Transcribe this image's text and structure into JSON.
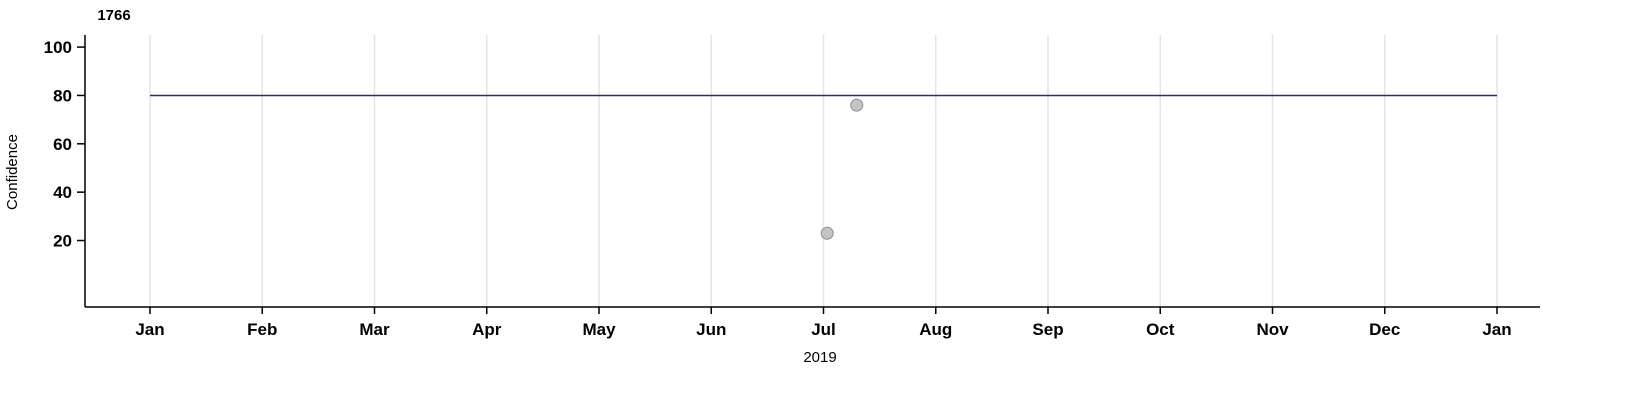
{
  "title": "1766",
  "ylabel": "Confidence",
  "xlabel": "2019",
  "chart_data": {
    "type": "scatter",
    "title": "1766",
    "xlabel": "2019",
    "ylabel": "Confidence",
    "x_tick_labels": [
      "Jan",
      "Feb",
      "Mar",
      "Apr",
      "May",
      "Jun",
      "Jul",
      "Aug",
      "Sep",
      "Oct",
      "Nov",
      "Dec",
      "Jan"
    ],
    "y_ticks": [
      20,
      40,
      60,
      80,
      100
    ],
    "ylim": [
      -7.5,
      105
    ],
    "grid": true,
    "grid_color": "#e4e4e4",
    "axis_color": "#000000",
    "reference_line": {
      "value": 80,
      "color": "#28288f"
    },
    "points": [
      {
        "date": "2019-07-02",
        "value": 23
      },
      {
        "date": "2019-07-10",
        "value": 76
      }
    ],
    "point_style": {
      "fill": "#c4c4c4",
      "stroke": "#8f8f8f",
      "radius": 6
    }
  }
}
